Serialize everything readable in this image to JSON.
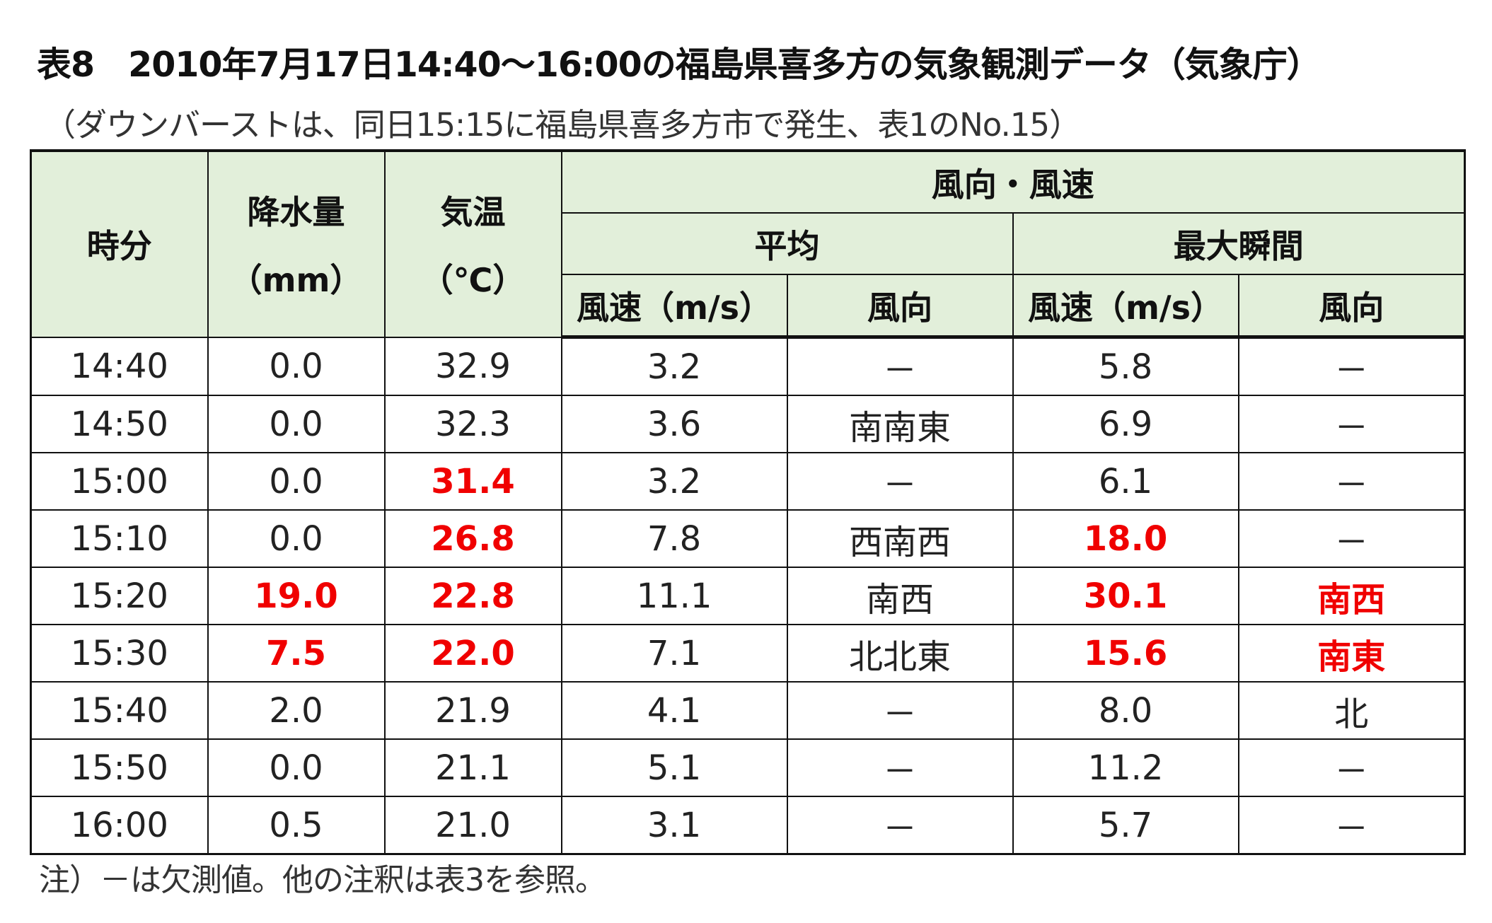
{
  "title": "表8　2010年7月17日14:40～16:00の福島県喜多方の気象観測データ（気象庁）",
  "subtitle": "（ダウンバーストは、同日15:15に福島県喜多方市で発生、表1のNo.15）",
  "headers": {
    "time": "時分",
    "precip": "降水量",
    "precip_unit": "（mm）",
    "temp": "気温",
    "temp_unit": "（℃）",
    "wind": "風向・風速",
    "avg": "平均",
    "max": "最大瞬間",
    "speed": "風速（m/s）",
    "dir": "風向"
  },
  "rows": [
    {
      "time": "14:40",
      "precip": "0.0",
      "temp": "32.9",
      "avg_speed": "3.2",
      "avg_dir": "－",
      "max_speed": "5.8",
      "max_dir": "－"
    },
    {
      "time": "14:50",
      "precip": "0.0",
      "temp": "32.3",
      "avg_speed": "3.6",
      "avg_dir": "南南東",
      "max_speed": "6.9",
      "max_dir": "－"
    },
    {
      "time": "15:00",
      "precip": "0.0",
      "temp": "31.4",
      "avg_speed": "3.2",
      "avg_dir": "－",
      "max_speed": "6.1",
      "max_dir": "－"
    },
    {
      "time": "15:10",
      "precip": "0.0",
      "temp": "26.8",
      "avg_speed": "7.8",
      "avg_dir": "西南西",
      "max_speed": "18.0",
      "max_dir": "－"
    },
    {
      "time": "15:20",
      "precip": "19.0",
      "temp": "22.8",
      "avg_speed": "11.1",
      "avg_dir": "南西",
      "max_speed": "30.1",
      "max_dir": "南西"
    },
    {
      "time": "15:30",
      "precip": "7.5",
      "temp": "22.0",
      "avg_speed": "7.1",
      "avg_dir": "北北東",
      "max_speed": "15.6",
      "max_dir": "南東"
    },
    {
      "time": "15:40",
      "precip": "2.0",
      "temp": "21.9",
      "avg_speed": "4.1",
      "avg_dir": "－",
      "max_speed": "8.0",
      "max_dir": "北"
    },
    {
      "time": "15:50",
      "precip": "0.0",
      "temp": "21.1",
      "avg_speed": "5.1",
      "avg_dir": "－",
      "max_speed": "11.2",
      "max_dir": "－"
    },
    {
      "time": "16:00",
      "precip": "0.5",
      "temp": "21.0",
      "avg_speed": "3.1",
      "avg_dir": "－",
      "max_speed": "5.7",
      "max_dir": "－"
    }
  ],
  "highlight_color": "#f00000",
  "header_bg": "#e2efda",
  "note": "注）－は欠測値。他の注釈は表3を参照。"
}
